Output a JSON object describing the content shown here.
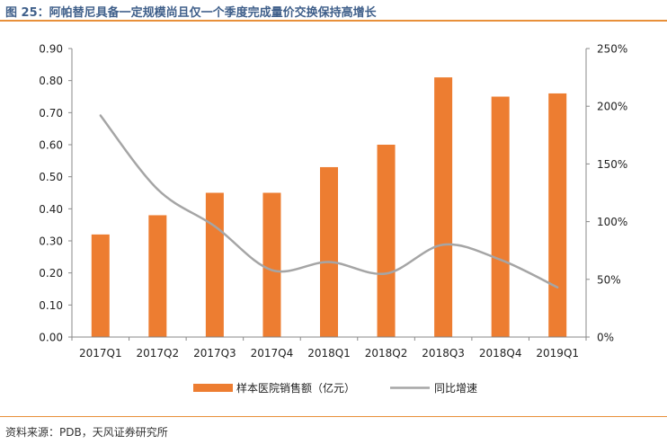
{
  "figure": {
    "title": "图 25：阿帕替尼具备一定规模尚且仅一个季度完成量价交换保持高增长",
    "source": "资料来源：PDB，天风证券研究所"
  },
  "chart_data": {
    "type": "bar",
    "categories": [
      "2017Q1",
      "2017Q2",
      "2017Q3",
      "2017Q4",
      "2018Q1",
      "2018Q2",
      "2018Q3",
      "2018Q4",
      "2019Q1"
    ],
    "series": [
      {
        "name": "样本医院销售额（亿元）",
        "type": "bar",
        "axis": "left",
        "color": "#ed7d31",
        "values": [
          0.32,
          0.38,
          0.45,
          0.45,
          0.53,
          0.6,
          0.81,
          0.75,
          0.76
        ]
      },
      {
        "name": "同比增速",
        "type": "line",
        "axis": "right",
        "color": "#a5a5a5",
        "values": [
          1.92,
          1.28,
          0.96,
          0.58,
          0.65,
          0.55,
          0.8,
          0.67,
          0.43
        ]
      }
    ],
    "y_left": {
      "min": 0,
      "max": 0.9,
      "ticks": [
        "0.00",
        "0.10",
        "0.20",
        "0.30",
        "0.40",
        "0.50",
        "0.60",
        "0.70",
        "0.80",
        "0.90"
      ]
    },
    "y_right": {
      "min": 0,
      "max": 2.5,
      "ticks": [
        "0%",
        "50%",
        "100%",
        "150%",
        "200%",
        "250%"
      ]
    },
    "legend_position": "bottom",
    "grid": false
  }
}
